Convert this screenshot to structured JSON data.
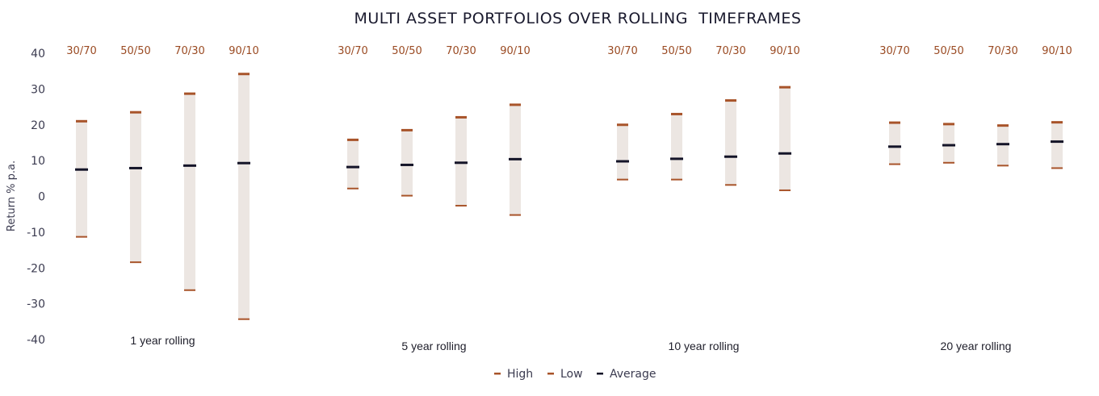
{
  "chart_data": {
    "type": "range-bar",
    "title": "MULTI ASSET PORTFOLIOS OVER ROLLING  TIMEFRAMES",
    "ylabel": "Return % p.a.",
    "ylim": [
      -40,
      40
    ],
    "yticks": [
      "40",
      "30",
      "20",
      "10",
      "0",
      "-10",
      "-20",
      "-30",
      "-40"
    ],
    "ytick_values": [
      40,
      30,
      20,
      10,
      0,
      -10,
      -20,
      -30,
      -40
    ],
    "categories": [
      "30/70",
      "50/50",
      "70/30",
      "90/10"
    ],
    "legend": [
      "High",
      "Low",
      "Average"
    ],
    "colors": {
      "high": "#a8542a",
      "low": "#a8542a",
      "average": "#141428",
      "bar": "#ece6e2",
      "category": "#9a4a22"
    },
    "panels": [
      {
        "label": "1 year rolling",
        "high": [
          21,
          23.5,
          28.7,
          34.2
        ],
        "low": [
          -11.3,
          -18.4,
          -26.2,
          -34.3
        ],
        "average": [
          7.5,
          7.9,
          8.6,
          9.3
        ]
      },
      {
        "label": "5 year rolling",
        "high": [
          15.8,
          18.5,
          22.1,
          25.6
        ],
        "low": [
          2.2,
          0.2,
          -2.6,
          -5.2
        ],
        "average": [
          8.2,
          8.8,
          9.4,
          10.4
        ]
      },
      {
        "label": "10 year rolling",
        "high": [
          20,
          23,
          26.8,
          30.5
        ],
        "low": [
          4.7,
          4.7,
          3.2,
          1.7
        ],
        "average": [
          9.8,
          10.5,
          11.1,
          12
        ]
      },
      {
        "label": "20 year rolling",
        "high": [
          20.6,
          20.2,
          19.8,
          20.7
        ],
        "low": [
          9,
          9.4,
          8.6,
          7.9
        ],
        "average": [
          13.9,
          14.3,
          14.6,
          15.3
        ]
      }
    ]
  }
}
